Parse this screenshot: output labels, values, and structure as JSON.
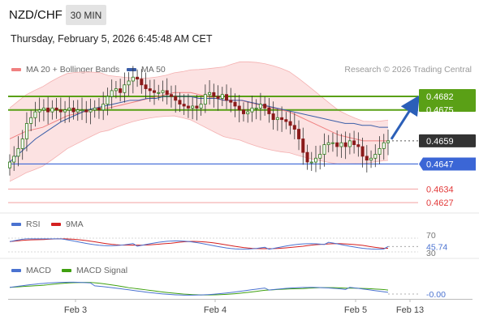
{
  "header": {
    "pair": "NZD/CHF",
    "timeframe": "30 MIN",
    "datetime": "Thursday, February 5, 2026 6:45:48 AM CET"
  },
  "legend": {
    "ma20": "MA 20 + Bollinger Bands",
    "ma50": "MA 50",
    "ma20_color": "#f08080",
    "ma50_color": "#3b5ea8",
    "credit": "Research © 2026 Trading Central"
  },
  "levels": {
    "resistance_upper": "0.4682",
    "resistance_lower": "0.4675",
    "last_price": "0.4659",
    "pivot": "0.4647",
    "support_1": "0.4634",
    "support_2": "0.4627",
    "colors": {
      "resistance": "#5aa016",
      "pivot": "#3b66d6",
      "support": "#e23a3a",
      "last": "#333333"
    }
  },
  "rsi_panel": {
    "label": "RSI",
    "signal_label": "9MA",
    "level_70": "70",
    "level_30": "30",
    "value": "45.74",
    "rsi_color": "#4a72d0",
    "signal_color": "#d42020"
  },
  "macd_panel": {
    "label": "MACD",
    "signal_label": "MACD Signal",
    "value": "-0.00",
    "macd_color": "#4a72d0",
    "signal_color": "#3fa010"
  },
  "xaxis": {
    "labels": [
      "Feb 3",
      "Feb 4",
      "Feb 5",
      "Feb 13"
    ]
  },
  "chart_data": {
    "type": "candlestick",
    "title": "NZD/CHF",
    "timeframe": "30 MIN",
    "x": [
      "Feb 3",
      "Feb 4",
      "Feb 5",
      "Feb 13"
    ],
    "y_unit": "price",
    "ylim": [
      0.4622,
      0.469
    ],
    "close_series": [
      0.4648,
      0.4651,
      0.4655,
      0.466,
      0.4668,
      0.4671,
      0.4674,
      0.4675,
      0.4676,
      0.4674,
      0.4676,
      0.4675,
      0.4674,
      0.4675,
      0.4676,
      0.4674,
      0.4675,
      0.4675,
      0.4674,
      0.4675,
      0.4676,
      0.4675,
      0.4678,
      0.4682,
      0.4685,
      0.4686,
      0.4684,
      0.4688,
      0.469,
      0.4692,
      0.4691,
      0.4688,
      0.4686,
      0.4685,
      0.4684,
      0.4684,
      0.4685,
      0.4683,
      0.4682,
      0.468,
      0.4678,
      0.4677,
      0.4676,
      0.4677,
      0.4676,
      0.4678,
      0.4683,
      0.4684,
      0.4682,
      0.4681,
      0.4683,
      0.468,
      0.4679,
      0.4677,
      0.4675,
      0.4673,
      0.4674,
      0.4676,
      0.4676,
      0.4678,
      0.4676,
      0.4673,
      0.467,
      0.4671,
      0.467,
      0.4669,
      0.4667,
      0.4665,
      0.466,
      0.4653,
      0.4648,
      0.4648,
      0.465,
      0.4652,
      0.4657,
      0.4658,
      0.4658,
      0.4656,
      0.4658,
      0.4656,
      0.4659,
      0.4657,
      0.4656,
      0.4651,
      0.4649,
      0.465,
      0.4652,
      0.4655,
      0.4658,
      0.4659
    ],
    "ma20": [
      0.466,
      0.4662,
      0.4664,
      0.4665,
      0.4666,
      0.4668,
      0.467,
      0.4672,
      0.4673,
      0.4674,
      0.4675,
      0.4676,
      0.4676,
      0.4677,
      0.4678,
      0.4679,
      0.468,
      0.4681,
      0.4682,
      0.4683,
      0.4684,
      0.4684,
      0.4684,
      0.4683,
      0.4682,
      0.4681,
      0.468,
      0.468,
      0.468,
      0.4679,
      0.4678,
      0.4677,
      0.4676,
      0.4675,
      0.4674,
      0.4672,
      0.467,
      0.4668,
      0.4666,
      0.4664,
      0.4662,
      0.4661,
      0.466,
      0.4659,
      0.4659,
      0.4659,
      0.4659
    ],
    "ma50": [
      0.4648,
      0.4652,
      0.4656,
      0.466,
      0.4663,
      0.4666,
      0.4669,
      0.4671,
      0.4673,
      0.4675,
      0.4676,
      0.4677,
      0.4678,
      0.4679,
      0.468,
      0.468,
      0.4681,
      0.4681,
      0.4682,
      0.4682,
      0.4682,
      0.4682,
      0.4681,
      0.4681,
      0.4681,
      0.468,
      0.468,
      0.468,
      0.4679,
      0.4678,
      0.4677,
      0.4676,
      0.4675,
      0.4674,
      0.4673,
      0.4672,
      0.4671,
      0.467,
      0.4669,
      0.4668,
      0.4668,
      0.4667,
      0.4667,
      0.4666,
      0.4666
    ],
    "levels": [
      {
        "label": "0.4682",
        "value": 0.4682,
        "kind": "resistance"
      },
      {
        "label": "0.4675",
        "value": 0.4675,
        "kind": "resistance"
      },
      {
        "label": "0.4659",
        "value": 0.4659,
        "kind": "last"
      },
      {
        "label": "0.4647",
        "value": 0.4647,
        "kind": "pivot"
      },
      {
        "label": "0.4634",
        "value": 0.4634,
        "kind": "support"
      },
      {
        "label": "0.4627",
        "value": 0.4627,
        "kind": "support"
      }
    ],
    "rsi": {
      "levels": [
        70,
        30
      ],
      "last": 45.74
    },
    "macd": {
      "last": -0.0
    }
  }
}
